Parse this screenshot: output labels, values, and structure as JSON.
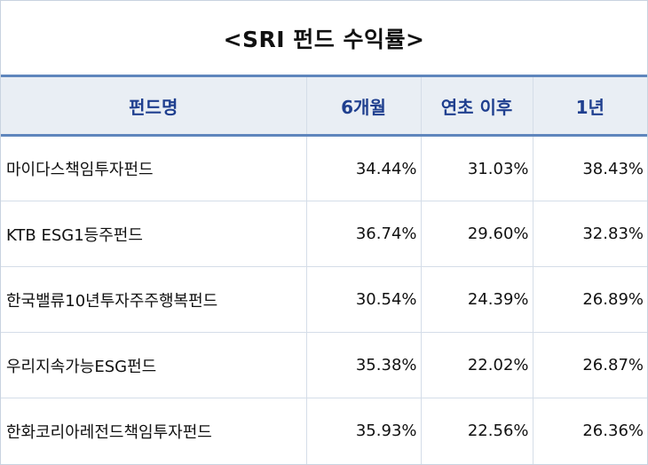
{
  "title": "<SRI 펀드 수익률>",
  "table": {
    "headers": [
      "펀드명",
      "6개월",
      "연초 이후",
      "1년"
    ],
    "rows": [
      {
        "name": "마이다스책임투자펀드",
        "m6": "34.44%",
        "ytd": "31.03%",
        "y1": "38.43%"
      },
      {
        "name": "KTB ESG1등주펀드",
        "m6": "36.74%",
        "ytd": "29.60%",
        "y1": "32.83%"
      },
      {
        "name": "한국밸류10년투자주주행복펀드",
        "m6": "30.54%",
        "ytd": "24.39%",
        "y1": "26.89%"
      },
      {
        "name": "우리지속가능ESG펀드",
        "m6": "35.38%",
        "ytd": "22.02%",
        "y1": "26.87%"
      },
      {
        "name": "한화코리아레전드책임투자펀드",
        "m6": "35.93%",
        "ytd": "22.56%",
        "y1": "26.36%"
      }
    ]
  },
  "colors": {
    "header_text": "#1f3f8f",
    "header_bg": "#e9eef4",
    "header_border": "#5f86bd",
    "grid": "#d5dde8"
  }
}
